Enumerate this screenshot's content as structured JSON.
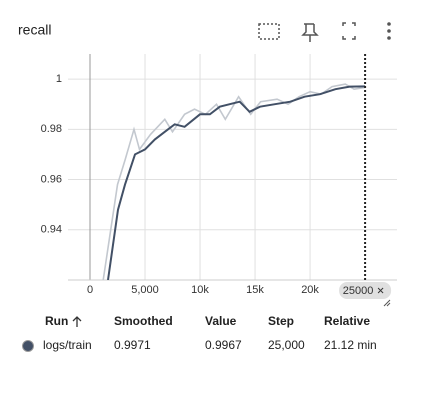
{
  "chart_data": {
    "type": "line",
    "title": "recall",
    "xlim": [
      -2000,
      27900
    ],
    "ylim": [
      0.92,
      1.01
    ],
    "xticks": [
      0,
      {
        "value": 5000,
        "label": "5,000"
      },
      {
        "value": 10000,
        "label": "10k"
      },
      {
        "value": 15000,
        "label": "15k"
      },
      {
        "value": 20000,
        "label": "20k"
      }
    ],
    "yticks": [
      0.94,
      0.96,
      0.98,
      1
    ],
    "grid": true,
    "cursor_step": 25000,
    "series": [
      {
        "color": "#c3c8cf",
        "x": [
          1200,
          2500,
          3200,
          4000,
          4500,
          5500,
          6800,
          7500,
          8600,
          9500,
          10500,
          11500,
          12300,
          13500,
          14600,
          15500,
          17000,
          18000,
          19000,
          20000,
          21000,
          22000,
          23200,
          24000,
          25000
        ],
        "values": [
          0.92,
          0.958,
          0.968,
          0.98,
          0.972,
          0.978,
          0.984,
          0.979,
          0.986,
          0.988,
          0.986,
          0.99,
          0.984,
          0.993,
          0.986,
          0.991,
          0.992,
          0.99,
          0.993,
          0.995,
          0.994,
          0.997,
          0.998,
          0.996,
          0.9967
        ]
      },
      {
        "name": "logs/train",
        "color": "#425066",
        "x": [
          1636,
          2545,
          3180,
          4090,
          5000,
          5900,
          6800,
          7700,
          8600,
          10000,
          10900,
          11800,
          12700,
          13600,
          14500,
          15450,
          16800,
          18200,
          19500,
          20900,
          22300,
          23600,
          25000
        ],
        "values": [
          0.92,
          0.948,
          0.958,
          0.97,
          0.972,
          0.976,
          0.979,
          0.982,
          0.981,
          0.986,
          0.986,
          0.989,
          0.99,
          0.991,
          0.987,
          0.989,
          0.99,
          0.991,
          0.993,
          0.994,
          0.996,
          0.997,
          0.9971
        ]
      }
    ]
  },
  "table": {
    "headers": [
      "Run",
      "Smoothed",
      "Value",
      "Step",
      "Relative"
    ],
    "row": [
      "logs/train",
      "0.9971",
      "0.9967",
      "25,000",
      "21.12 min"
    ]
  }
}
